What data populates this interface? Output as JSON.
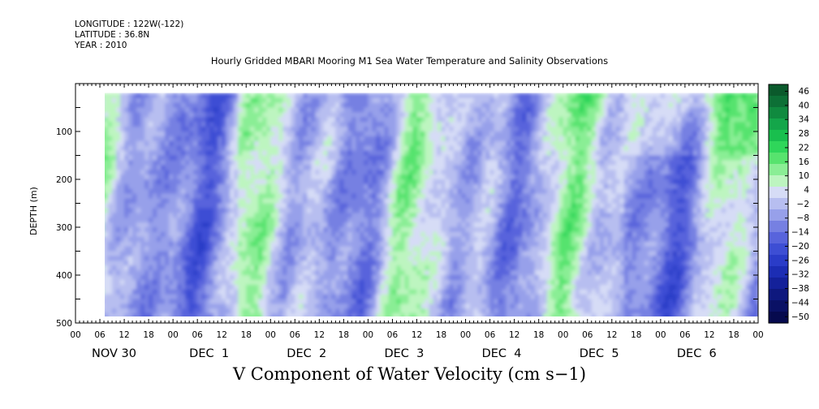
{
  "header": {
    "longitude": "LONGITUDE : 122W(-122)",
    "latitude": "LATITUDE : 36.8N",
    "year": "YEAR : 2010",
    "title": "Hourly Gridded MBARI Mooring M1 Sea Water Temperature and Salinity Observations"
  },
  "chart_data": {
    "type": "heatmap",
    "title": "Hourly Gridded MBARI Mooring M1 Sea Water Temperature and Salinity Observations",
    "subtitle": "V Component of Water Velocity (cm s−1)",
    "ylabel": "DEPTH (m)",
    "y_reversed": true,
    "ylim": [
      0,
      500
    ],
    "y_ticks": [
      100,
      200,
      300,
      400,
      500
    ],
    "x_hour_ticks": [
      "00",
      "06",
      "12",
      "18",
      "00",
      "06",
      "12",
      "18",
      "00",
      "06",
      "12",
      "18",
      "00",
      "06",
      "12",
      "18",
      "00",
      "06",
      "12",
      "18",
      "00",
      "06",
      "12",
      "18",
      "00",
      "06",
      "12",
      "18",
      "00"
    ],
    "x_day_labels": [
      "NOV 30",
      "DEC  1",
      "DEC  2",
      "DEC  3",
      "DEC  4",
      "DEC  5",
      "DEC  6"
    ],
    "data_extent": {
      "hours_start": 6,
      "hours_end": 168,
      "depth_top": 20,
      "depth_bottom": 490
    },
    "colorbar": {
      "labels": [
        "46",
        "40",
        "34",
        "28",
        "22",
        "16",
        "10",
        "4",
        "−2",
        "−8",
        "−14",
        "−20",
        "−26",
        "−32",
        "−38",
        "−44",
        "−50"
      ],
      "colors": [
        "#0b5a2c",
        "#0d7036",
        "#108a3f",
        "#14a64a",
        "#19bf4e",
        "#2fd65a",
        "#57e36e",
        "#8aee95",
        "#bdf5c0",
        "#d6dcf6",
        "#b7bef0",
        "#97a0ea",
        "#7680e2",
        "#5864dc",
        "#3d4ed4",
        "#2a3cc8",
        "#1c2db4",
        "#14219a",
        "#0e187e",
        "#0a1165",
        "#060a4e"
      ]
    },
    "field_description": "alternating vertical bands of northward (green) and southward (blue) velocity, magnitude mostly within -20..+30 cm/s, strongest positive near surface after DEC 4"
  }
}
